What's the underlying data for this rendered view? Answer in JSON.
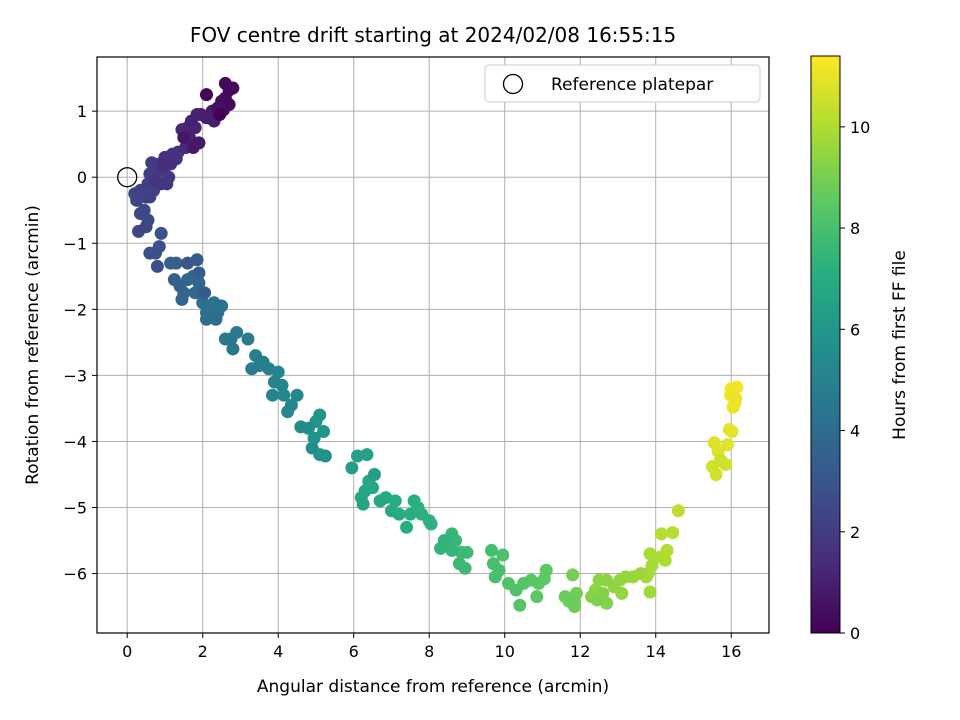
{
  "chart_data": {
    "type": "scatter",
    "title": "FOV centre drift starting at 2024/02/08 16:55:15",
    "xlabel": "Angular distance from reference (arcmin)",
    "ylabel": "Rotation from reference (arcmin)",
    "xlim": [
      -0.8,
      17.0
    ],
    "ylim": [
      -6.9,
      1.82
    ],
    "xticks": [
      0,
      2,
      4,
      6,
      8,
      10,
      12,
      14,
      16
    ],
    "yticks": [
      1,
      0,
      -1,
      -2,
      -3,
      -4,
      -5,
      -6
    ],
    "xtick_labels": [
      "0",
      "2",
      "4",
      "6",
      "8",
      "10",
      "12",
      "14",
      "16"
    ],
    "ytick_labels": [
      "1",
      "0",
      "−1",
      "−2",
      "−3",
      "−4",
      "−5",
      "−6"
    ],
    "grid": true,
    "legend": {
      "position": "upper right",
      "entries": [
        {
          "label": "Reference platepar",
          "marker": "open-circle",
          "x": 0,
          "y": 0
        }
      ]
    },
    "colorbar": {
      "label": "Hours from first FF file",
      "colormap": "viridis",
      "range": [
        0,
        11.4
      ],
      "ticks": [
        0,
        2,
        4,
        6,
        8,
        10
      ],
      "tick_labels": [
        "0",
        "2",
        "4",
        "6",
        "8",
        "10"
      ]
    },
    "series": [
      {
        "columns": [
          "x",
          "y",
          "hours"
        ],
        "points": [
          [
            16.0,
            -3.2
          ],
          [
            16.15,
            -3.18
          ],
          [
            15.98,
            -3.3
          ],
          [
            16.1,
            -3.42
          ],
          [
            16.05,
            -3.48
          ],
          [
            16.12,
            -3.35
          ],
          [
            15.95,
            -3.82
          ],
          [
            16.02,
            -3.85
          ],
          [
            15.9,
            -4.05
          ],
          [
            15.65,
            -4.15
          ],
          [
            15.55,
            -4.02
          ],
          [
            15.7,
            -4.3
          ],
          [
            15.85,
            -4.35
          ],
          [
            15.5,
            -4.38
          ],
          [
            15.6,
            -4.5
          ],
          [
            15.72,
            -4.28
          ],
          [
            14.6,
            -5.05
          ],
          [
            14.45,
            -5.38
          ],
          [
            14.15,
            -5.4
          ],
          [
            14.3,
            -5.65
          ],
          [
            14.12,
            -5.75
          ],
          [
            14.25,
            -5.8
          ],
          [
            13.85,
            -5.7
          ],
          [
            13.9,
            -5.88
          ],
          [
            13.8,
            -6.0
          ],
          [
            13.75,
            -6.05
          ],
          [
            13.85,
            -6.28
          ],
          [
            13.6,
            -6.0
          ],
          [
            13.4,
            -6.05
          ],
          [
            13.2,
            -6.05
          ],
          [
            13.05,
            -6.1
          ],
          [
            13.1,
            -6.3
          ],
          [
            12.9,
            -6.2
          ],
          [
            12.7,
            -6.1
          ],
          [
            12.5,
            -6.1
          ],
          [
            12.4,
            -6.25
          ],
          [
            12.3,
            -6.35
          ],
          [
            12.6,
            -6.3
          ],
          [
            12.7,
            -6.45
          ],
          [
            12.45,
            -6.4
          ],
          [
            11.8,
            -6.02
          ],
          [
            11.9,
            -6.3
          ],
          [
            11.85,
            -6.5
          ],
          [
            11.7,
            -6.42
          ],
          [
            11.6,
            -6.35
          ],
          [
            11.85,
            -6.42
          ],
          [
            11.1,
            -5.95
          ],
          [
            11.05,
            -6.08
          ],
          [
            10.9,
            -6.15
          ],
          [
            10.85,
            -6.35
          ],
          [
            10.7,
            -6.1
          ],
          [
            10.5,
            -6.15
          ],
          [
            10.4,
            -6.48
          ],
          [
            10.3,
            -6.25
          ],
          [
            10.1,
            -6.15
          ],
          [
            9.95,
            -5.72
          ],
          [
            9.85,
            -5.95
          ],
          [
            9.75,
            -6.05
          ],
          [
            9.7,
            -5.85
          ],
          [
            9.65,
            -5.65
          ],
          [
            9.0,
            -5.68
          ],
          [
            8.95,
            -5.92
          ],
          [
            8.8,
            -5.85
          ],
          [
            8.85,
            -5.68
          ],
          [
            8.6,
            -5.4
          ],
          [
            8.7,
            -5.5
          ],
          [
            8.6,
            -5.65
          ],
          [
            8.3,
            -5.62
          ],
          [
            8.4,
            -5.5
          ],
          [
            8.05,
            -5.25
          ],
          [
            8.0,
            -5.2
          ],
          [
            7.8,
            -5.1
          ],
          [
            7.7,
            -5.0
          ],
          [
            7.6,
            -4.9
          ],
          [
            7.5,
            -5.1
          ],
          [
            7.4,
            -5.3
          ],
          [
            7.2,
            -5.1
          ],
          [
            7.1,
            -4.9
          ],
          [
            7.0,
            -5.05
          ],
          [
            6.85,
            -4.85
          ],
          [
            6.7,
            -4.9
          ],
          [
            6.5,
            -4.7
          ],
          [
            6.4,
            -4.6
          ],
          [
            6.3,
            -4.75
          ],
          [
            6.2,
            -4.85
          ],
          [
            6.25,
            -4.95
          ],
          [
            6.35,
            -4.2
          ],
          [
            6.1,
            -4.22
          ],
          [
            5.95,
            -4.4
          ],
          [
            6.55,
            -4.5
          ],
          [
            5.2,
            -3.85
          ],
          [
            5.1,
            -3.6
          ],
          [
            5.0,
            -3.7
          ],
          [
            4.95,
            -3.95
          ],
          [
            5.1,
            -4.2
          ],
          [
            5.25,
            -4.22
          ],
          [
            4.8,
            -3.8
          ],
          [
            4.9,
            -4.1
          ],
          [
            4.6,
            -3.78
          ],
          [
            4.5,
            -3.3
          ],
          [
            4.35,
            -3.45
          ],
          [
            4.25,
            -3.55
          ],
          [
            4.15,
            -3.3
          ],
          [
            4.1,
            -3.15
          ],
          [
            4.0,
            -2.95
          ],
          [
            3.9,
            -3.1
          ],
          [
            3.85,
            -3.3
          ],
          [
            3.75,
            -2.9
          ],
          [
            3.6,
            -2.8
          ],
          [
            3.5,
            -2.85
          ],
          [
            3.4,
            -2.7
          ],
          [
            3.3,
            -2.9
          ],
          [
            3.2,
            -2.45
          ],
          [
            2.9,
            -2.35
          ],
          [
            2.75,
            -2.45
          ],
          [
            2.6,
            -2.45
          ],
          [
            2.8,
            -2.6
          ],
          [
            2.5,
            -1.95
          ],
          [
            2.4,
            -2.05
          ],
          [
            2.3,
            -1.9
          ],
          [
            2.1,
            -2.05
          ],
          [
            2.0,
            -1.9
          ],
          [
            2.1,
            -2.15
          ],
          [
            2.35,
            -2.15
          ],
          [
            1.6,
            -1.55
          ],
          [
            1.75,
            -1.5
          ],
          [
            1.9,
            -1.6
          ],
          [
            1.8,
            -1.75
          ],
          [
            1.5,
            -1.75
          ],
          [
            1.45,
            -1.85
          ],
          [
            1.4,
            -1.65
          ],
          [
            1.3,
            -1.3
          ],
          [
            1.15,
            -1.3
          ],
          [
            1.25,
            -1.55
          ],
          [
            1.85,
            -1.25
          ],
          [
            1.9,
            -1.45
          ],
          [
            2.05,
            -1.75
          ],
          [
            1.6,
            -1.3
          ],
          [
            0.85,
            -1.05
          ],
          [
            0.9,
            -0.85
          ],
          [
            0.75,
            -1.15
          ],
          [
            0.6,
            -1.15
          ],
          [
            0.8,
            -1.35
          ],
          [
            0.5,
            -0.75
          ],
          [
            0.55,
            -0.65
          ],
          [
            0.45,
            -0.5
          ],
          [
            0.35,
            -0.55
          ],
          [
            0.3,
            -0.82
          ],
          [
            0.25,
            -0.35
          ],
          [
            0.2,
            -0.25
          ],
          [
            0.35,
            -0.2
          ],
          [
            0.5,
            -0.3
          ],
          [
            0.6,
            -0.3
          ],
          [
            0.7,
            -0.2
          ],
          [
            0.55,
            -0.1
          ],
          [
            0.6,
            0.05
          ],
          [
            0.75,
            0.1
          ],
          [
            0.65,
            0.22
          ],
          [
            0.85,
            0.2
          ],
          [
            0.95,
            0.1
          ],
          [
            1.1,
            0.0
          ],
          [
            0.9,
            -0.1
          ],
          [
            1.05,
            -0.1
          ],
          [
            0.75,
            -0.05
          ],
          [
            1.0,
            0.3
          ],
          [
            1.2,
            0.35
          ],
          [
            1.3,
            0.28
          ],
          [
            1.35,
            0.38
          ],
          [
            1.15,
            0.2
          ],
          [
            0.95,
            0.18
          ],
          [
            1.55,
            0.45
          ],
          [
            1.6,
            0.75
          ],
          [
            1.45,
            0.72
          ],
          [
            1.65,
            0.6
          ],
          [
            1.8,
            0.75
          ],
          [
            1.7,
            0.85
          ],
          [
            1.85,
            0.95
          ],
          [
            1.95,
            0.95
          ],
          [
            2.1,
            0.9
          ],
          [
            2.3,
            0.85
          ],
          [
            2.25,
            1.0
          ],
          [
            1.9,
            0.52
          ],
          [
            1.75,
            0.45
          ],
          [
            1.5,
            0.6
          ],
          [
            2.4,
            1.05
          ],
          [
            2.5,
            1.15
          ],
          [
            2.6,
            1.2
          ],
          [
            2.55,
            1.02
          ],
          [
            2.7,
            1.1
          ],
          [
            2.8,
            1.35
          ],
          [
            2.6,
            1.42
          ],
          [
            2.7,
            1.32
          ],
          [
            2.1,
            1.25
          ],
          [
            2.45,
            0.95
          ]
        ]
      }
    ]
  }
}
